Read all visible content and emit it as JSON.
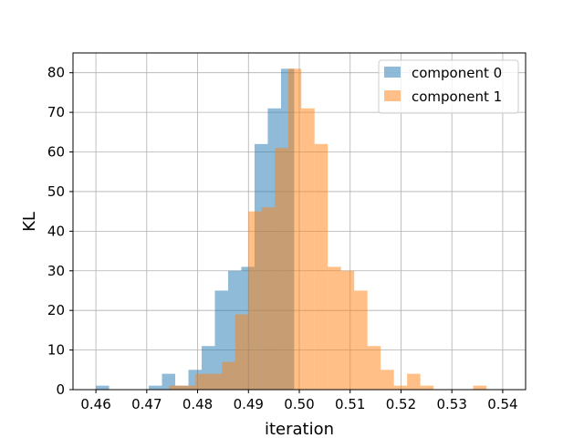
{
  "chart_data": {
    "type": "histogram",
    "title": "",
    "xlabel": "iteration",
    "ylabel": "KL",
    "xlim": [
      0.4555,
      0.5445
    ],
    "ylim": [
      0,
      85
    ],
    "xticks": [
      0.46,
      0.47,
      0.48,
      0.49,
      0.5,
      0.51,
      0.52,
      0.53,
      0.54
    ],
    "xtick_labels": [
      "0.46",
      "0.47",
      "0.48",
      "0.49",
      "0.50",
      "0.51",
      "0.52",
      "0.53",
      "0.54"
    ],
    "yticks": [
      0,
      10,
      20,
      30,
      40,
      50,
      60,
      70,
      80
    ],
    "ytick_labels": [
      "0",
      "10",
      "20",
      "30",
      "40",
      "50",
      "60",
      "70",
      "80"
    ],
    "grid": true,
    "legend_position": "top-right",
    "series": [
      {
        "name": "component 0",
        "color": "#1f77b4",
        "alpha": 0.5,
        "bin_edges": [
          0.46,
          0.4626,
          0.4652,
          0.4678,
          0.4704,
          0.473,
          0.4756,
          0.4782,
          0.4808,
          0.4834,
          0.486,
          0.4886,
          0.4912,
          0.4938,
          0.4964,
          0.499
        ],
        "counts": [
          1,
          0,
          0,
          0,
          1,
          4,
          1,
          5,
          11,
          25,
          30,
          31,
          62,
          71,
          81
        ]
      },
      {
        "name": "component 1",
        "color": "#ff7f0e",
        "alpha": 0.5,
        "bin_edges": [
          0.4744,
          0.477,
          0.4796,
          0.4822,
          0.4848,
          0.4874,
          0.49,
          0.4926,
          0.4952,
          0.4978,
          0.5004,
          0.503,
          0.5056,
          0.5082,
          0.5108,
          0.5134,
          0.516,
          0.5186,
          0.5212,
          0.5238,
          0.5264,
          0.529,
          0.5316,
          0.5342,
          0.5368,
          0.5394
        ],
        "counts": [
          1,
          1,
          4,
          4,
          7,
          19,
          45,
          46,
          61,
          81,
          71,
          62,
          31,
          30,
          25,
          11,
          5,
          1,
          4,
          1,
          0,
          0,
          0,
          1,
          0
        ]
      }
    ]
  }
}
